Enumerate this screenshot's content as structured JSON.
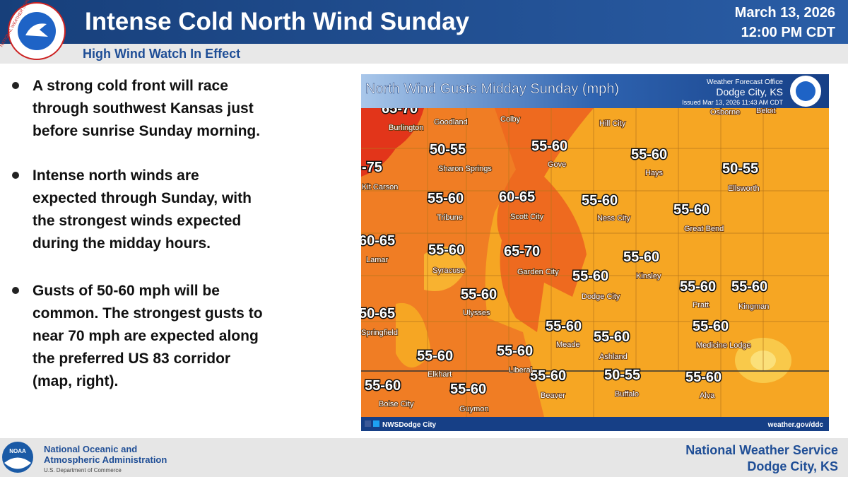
{
  "header": {
    "title": "Intense Cold North Wind Sunday",
    "date": "March 13, 2026",
    "time": "12:00 PM CDT",
    "subtitle": "High Wind Watch In Effect",
    "logo_text": "NATIONAL WEATHER SERVICE"
  },
  "bullets": [
    [
      "A strong cold front will race",
      "through southwest Kansas just",
      "before sunrise Sunday morning."
    ],
    [
      "Intense north winds are",
      "expected through Sunday, with",
      "the strongest winds expected",
      "during the midday hours."
    ],
    [
      "Gusts of 50-60 mph will be",
      "common. The strongest gusts to",
      "near 70 mph are expected along",
      "the preferred US 83 corridor",
      "(map, right)."
    ]
  ],
  "map": {
    "title": "North Wind Gusts Midday Sunday (mph)",
    "office": "Weather Forecast Office",
    "location": "Dodge City, KS",
    "issued": "Issued Mar 13, 2026 11:43 AM CDT",
    "gusts": [
      "65-70",
      "55-60",
      "55-60",
      "-75",
      "50-55",
      "55-60",
      "55-60",
      "50-55",
      "55-60",
      "60-65",
      "55-60",
      "55-60",
      "60-65",
      "55-60",
      "65-70",
      "55-60",
      "55-60",
      "55-60",
      "55-60",
      "55-60",
      "50-65",
      "55-60",
      "55-60",
      "55-60",
      "55-60",
      "55-60",
      "55-60",
      "55-60",
      "55-60",
      "50-55",
      "55-60"
    ],
    "towns": [
      "Burlington",
      "Goodland",
      "Colby",
      "Hill City",
      "Osborne",
      "Beloit",
      "Sharon Springs",
      "Gove",
      "Hays",
      "Ellsworth",
      "Kit Carson",
      "Tribune",
      "Scott City",
      "Ness City",
      "Great Bend",
      "Lamar",
      "Syracuse",
      "Garden City",
      "Kinsley",
      "Dodge City",
      "Ulysses",
      "Pratt",
      "Kingman",
      "Springfield",
      "Meade",
      "Ashland",
      "Medicine Lodge",
      "Elkhart",
      "Liberal",
      "Boise City",
      "Guymon",
      "Beaver",
      "Buffalo",
      "Alva"
    ],
    "social": "NWSDodge City",
    "website": "weather.gov/ddc"
  },
  "footer": {
    "noaa": "NOAA",
    "agency_line1": "National Oceanic and",
    "agency_line2": "Atmospheric Administration",
    "department": "U.S. Department of Commerce",
    "office_line1": "National Weather Service",
    "office_line2": "Dodge City, KS"
  }
}
